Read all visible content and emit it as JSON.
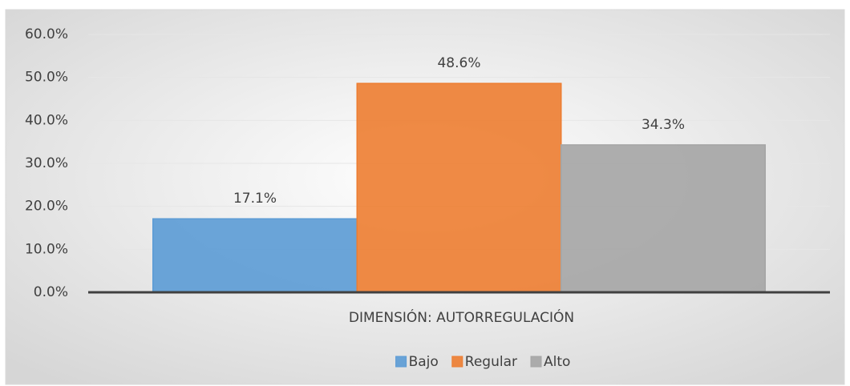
{
  "chart_data": {
    "type": "bar",
    "categories": [
      "DIMENSIÓN: AUTORREGULACIÓN"
    ],
    "series": [
      {
        "name": "Bajo",
        "color": "#5b9bd5",
        "values": [
          17.1
        ],
        "value_labels": [
          "17.1%"
        ]
      },
      {
        "name": "Regular",
        "color": "#ed7d31",
        "values": [
          48.6
        ],
        "value_labels": [
          "48.6%"
        ]
      },
      {
        "name": "Alto",
        "color": "#a5a5a5",
        "values": [
          34.3
        ],
        "value_labels": [
          "34.3%"
        ]
      }
    ],
    "ylim": [
      0,
      60
    ],
    "yticks": [
      {
        "value": 0,
        "label": "0.0%"
      },
      {
        "value": 10,
        "label": "10.0%"
      },
      {
        "value": 20,
        "label": "20.0%"
      },
      {
        "value": 30,
        "label": "30.0%"
      },
      {
        "value": 40,
        "label": "40.0%"
      },
      {
        "value": 50,
        "label": "50.0%"
      },
      {
        "value": 60,
        "label": "60.0%"
      }
    ],
    "grid": true,
    "legend": "bottom"
  }
}
